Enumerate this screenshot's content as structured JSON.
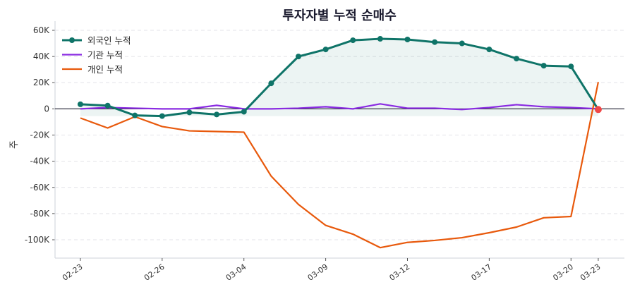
{
  "chart_data": {
    "type": "line",
    "title": "투자자별 누적 순매수",
    "xlabel": "",
    "ylabel": "주",
    "x": [
      "02-23",
      "02-24",
      "02-25",
      "02-26",
      "02-27",
      "03-03",
      "03-04",
      "03-05",
      "03-06",
      "03-09",
      "03-10",
      "03-11",
      "03-12",
      "03-13",
      "03-16",
      "03-17",
      "03-18",
      "03-19",
      "03-20",
      "03-23"
    ],
    "xticks": [
      "02-23",
      "02-26",
      "03-04",
      "03-09",
      "03-12",
      "03-17",
      "03-20",
      "03-23"
    ],
    "yticks": [
      60000,
      40000,
      20000,
      0,
      -20000,
      -40000,
      -60000,
      -80000,
      -100000
    ],
    "ytick_labels": [
      "60K",
      "40K",
      "20K",
      "0",
      "-20K",
      "-40K",
      "-60K",
      "-80K",
      "-100K"
    ],
    "ylim": [
      -114000,
      67000
    ],
    "grid": true,
    "legend_position": "top-left",
    "series": [
      {
        "name": "외국인 누적",
        "color": "#0f7468",
        "markers": true,
        "fill": true,
        "values": [
          3500,
          2500,
          -5000,
          -5500,
          -2700,
          -4300,
          -2200,
          19500,
          40000,
          45400,
          52400,
          53500,
          53000,
          51000,
          50000,
          45400,
          38400,
          33000,
          32400,
          -500
        ]
      },
      {
        "name": "기관 누적",
        "color": "#8a2be2",
        "markers": false,
        "values": [
          0,
          1000,
          500,
          0,
          0,
          2700,
          0,
          0,
          500,
          1600,
          0,
          3800,
          500,
          500,
          -500,
          1000,
          3200,
          1600,
          1000,
          0
        ]
      },
      {
        "name": "개인 누적",
        "color": "#e8590c",
        "markers": false,
        "values": [
          -7000,
          -14600,
          -6000,
          -13500,
          -16800,
          -17300,
          -17800,
          -51400,
          -73000,
          -89000,
          -95700,
          -106000,
          -102000,
          -100500,
          -98400,
          -94600,
          -90300,
          -83200,
          -82200,
          20500
        ]
      }
    ],
    "highlight_color": "#f04747"
  }
}
